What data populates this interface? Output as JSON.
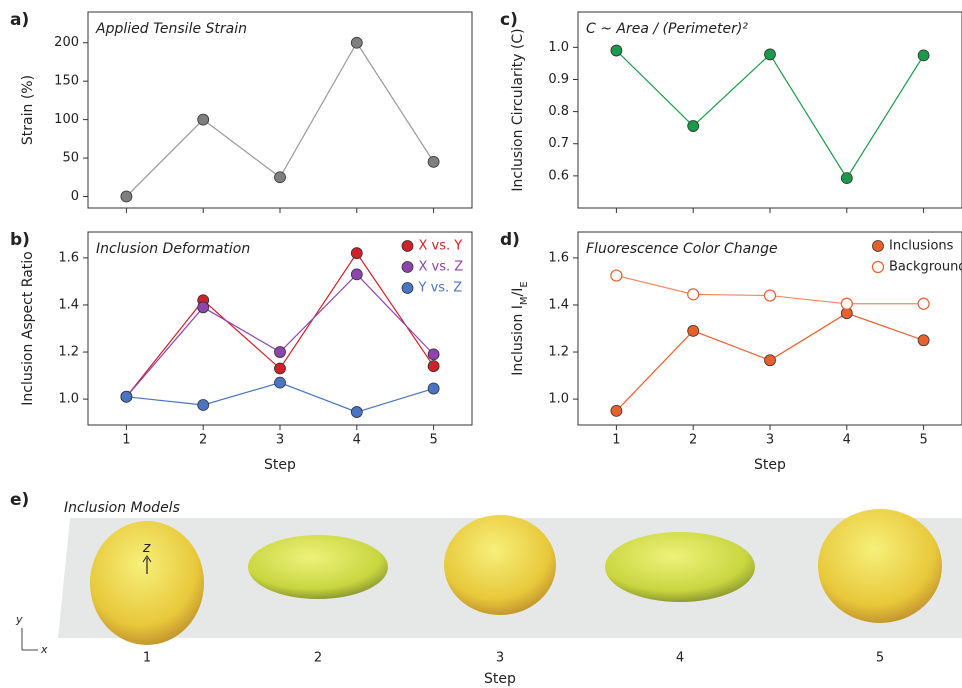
{
  "chart_data": [
    {
      "type": "line",
      "panel_label": "a)",
      "title": "Applied Tensile Strain",
      "y_label": [
        {
          "text": "Strain (%)"
        }
      ],
      "x": [
        1,
        2,
        3,
        4,
        5
      ],
      "xlim": [
        0.5,
        5.5
      ],
      "xticks": [
        1,
        2,
        3,
        4,
        5
      ],
      "show_xtick_labels": false,
      "ylim": [
        -15,
        240
      ],
      "yticks": [
        0,
        50,
        100,
        150,
        200
      ],
      "series": [
        {
          "color": "#7f7f7f",
          "line_color": "#999999",
          "filled": true,
          "values": [
            0,
            100,
            25,
            200,
            45
          ]
        }
      ]
    },
    {
      "type": "line",
      "panel_label": "b)",
      "title": "Inclusion Deformation",
      "y_label": [
        {
          "text": "Inclusion Aspect Ratio"
        }
      ],
      "x_label": "Step",
      "x": [
        1,
        2,
        3,
        4,
        5
      ],
      "xlim": [
        0.5,
        5.5
      ],
      "xticks": [
        1,
        2,
        3,
        4,
        5
      ],
      "show_xtick_labels": true,
      "ylim": [
        0.89,
        1.71
      ],
      "yticks": [
        {
          "value": 1,
          "label": "1.0"
        },
        1.2,
        1.4,
        1.6
      ],
      "legend": "upper right",
      "legend_text_colored": true,
      "series": [
        {
          "name": "X vs. Y",
          "color": "#d0202a",
          "line_color": "#d0202a",
          "filled": true,
          "values": [
            1.01,
            1.42,
            1.13,
            1.62,
            1.14
          ]
        },
        {
          "name": "X vs. Z",
          "color": "#8e44ad",
          "line_color": "#8e44ad",
          "filled": true,
          "values": [
            1.01,
            1.39,
            1.2,
            1.53,
            1.19
          ]
        },
        {
          "name": "Y vs. Z",
          "color": "#4a74c4",
          "line_color": "#4a74c4",
          "filled": true,
          "values": [
            1.01,
            0.975,
            1.07,
            0.945,
            1.045
          ]
        }
      ]
    },
    {
      "type": "line",
      "panel_label": "c)",
      "title": "C ~ Area / (Perimeter)²",
      "y_label": [
        {
          "text": "Inclusion Circularity (C)"
        }
      ],
      "x": [
        1,
        2,
        3,
        4,
        5
      ],
      "xlim": [
        0.5,
        5.5
      ],
      "xticks": [
        1,
        2,
        3,
        4,
        5
      ],
      "show_xtick_labels": false,
      "ylim": [
        0.5,
        1.11
      ],
      "yticks": [
        0.6,
        0.7,
        0.8,
        0.9,
        {
          "value": 1,
          "label": "1.0"
        }
      ],
      "series": [
        {
          "color": "#1a9a4a",
          "line_color": "#1a9a4a",
          "filled": true,
          "values": [
            0.99,
            0.755,
            0.978,
            0.593,
            0.975
          ]
        }
      ]
    },
    {
      "type": "line",
      "panel_label": "d)",
      "title": "Fluorescence Color Change",
      "y_label": [
        {
          "text": "Inclusion  I"
        },
        {
          "text": "M",
          "sub": true
        },
        {
          "text": "/I"
        },
        {
          "text": "E",
          "sub": true
        }
      ],
      "x_label": "Step",
      "x": [
        1,
        2,
        3,
        4,
        5
      ],
      "xlim": [
        0.5,
        5.5
      ],
      "xticks": [
        1,
        2,
        3,
        4,
        5
      ],
      "show_xtick_labels": true,
      "ylim": [
        0.89,
        1.71
      ],
      "yticks": [
        {
          "value": 1,
          "label": "1.0"
        },
        1.2,
        1.4,
        1.6
      ],
      "legend": "upper right",
      "legend_text_colored": false,
      "series": [
        {
          "name": "Inclusions",
          "color": "#e8602c",
          "line_color": "#e8602c",
          "filled": true,
          "values": [
            0.95,
            1.29,
            1.165,
            1.365,
            1.25
          ]
        },
        {
          "name": "Background",
          "color": "#e8602c",
          "line_color": "#f08a60",
          "filled": false,
          "values": [
            1.525,
            1.445,
            1.44,
            1.405,
            1.405
          ]
        }
      ]
    }
  ],
  "models": {
    "label": "e)",
    "title": "Inclusion Models",
    "steps": [
      "1",
      "2",
      "3",
      "4",
      "5"
    ],
    "x_label": "Step",
    "axis_labels": {
      "x": "x",
      "y": "y",
      "z": "z"
    }
  }
}
